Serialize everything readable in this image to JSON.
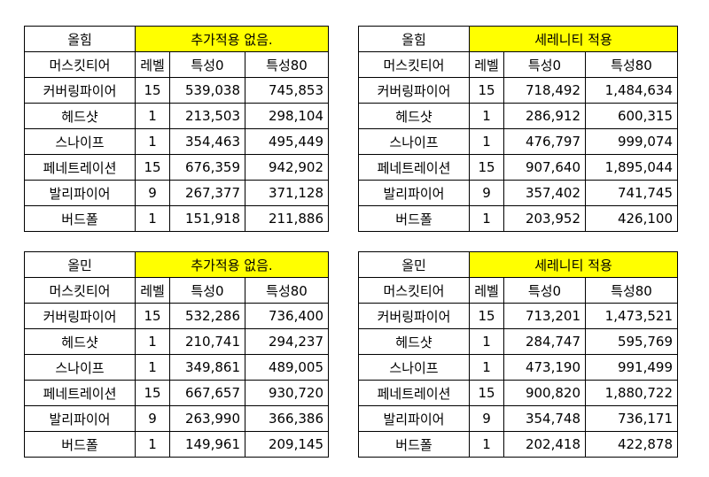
{
  "tables": [
    {
      "header": "올힘",
      "note": "추가적용 없음.",
      "columns": [
        "머스킷티어",
        "레벨",
        "특성0",
        "특성80"
      ],
      "rows": [
        [
          "커버링파이어",
          "15",
          "539,038",
          "745,853"
        ],
        [
          "헤드샷",
          "1",
          "213,503",
          "298,104"
        ],
        [
          "스나이프",
          "1",
          "354,463",
          "495,449"
        ],
        [
          "페네트레이션",
          "15",
          "676,359",
          "942,902"
        ],
        [
          "발리파이어",
          "9",
          "267,377",
          "371,128"
        ],
        [
          "버드폴",
          "1",
          "151,918",
          "211,886"
        ]
      ]
    },
    {
      "header": "올힘",
      "note": "세레니티 적용",
      "columns": [
        "머스킷티어",
        "레벨",
        "특성0",
        "특성80"
      ],
      "rows": [
        [
          "커버링파이어",
          "15",
          "718,492",
          "1,484,634"
        ],
        [
          "헤드샷",
          "1",
          "286,912",
          "600,315"
        ],
        [
          "스나이프",
          "1",
          "476,797",
          "999,074"
        ],
        [
          "페네트레이션",
          "15",
          "907,640",
          "1,895,044"
        ],
        [
          "발리파이어",
          "9",
          "357,402",
          "741,745"
        ],
        [
          "버드폴",
          "1",
          "203,952",
          "426,100"
        ]
      ]
    },
    {
      "header": "올민",
      "note": "추가적용 없음.",
      "columns": [
        "머스킷티어",
        "레벨",
        "특성0",
        "특성80"
      ],
      "rows": [
        [
          "커버링파이어",
          "15",
          "532,286",
          "736,400"
        ],
        [
          "헤드샷",
          "1",
          "210,741",
          "294,237"
        ],
        [
          "스나이프",
          "1",
          "349,861",
          "489,005"
        ],
        [
          "페네트레이션",
          "15",
          "667,657",
          "930,720"
        ],
        [
          "발리파이어",
          "9",
          "263,990",
          "366,386"
        ],
        [
          "버드폴",
          "1",
          "149,961",
          "209,145"
        ]
      ]
    },
    {
      "header": "올민",
      "note": "세레니티 적용",
      "columns": [
        "머스킷티어",
        "레벨",
        "특성0",
        "특성80"
      ],
      "rows": [
        [
          "커버링파이어",
          "15",
          "713,201",
          "1,473,521"
        ],
        [
          "헤드샷",
          "1",
          "284,747",
          "595,769"
        ],
        [
          "스나이프",
          "1",
          "473,190",
          "991,499"
        ],
        [
          "페네트레이션",
          "15",
          "900,820",
          "1,880,722"
        ],
        [
          "발리파이어",
          "9",
          "354,748",
          "736,171"
        ],
        [
          "버드폴",
          "1",
          "202,418",
          "422,878"
        ]
      ]
    }
  ],
  "colors": {
    "highlight": "#ffff00",
    "border": "#000000"
  }
}
